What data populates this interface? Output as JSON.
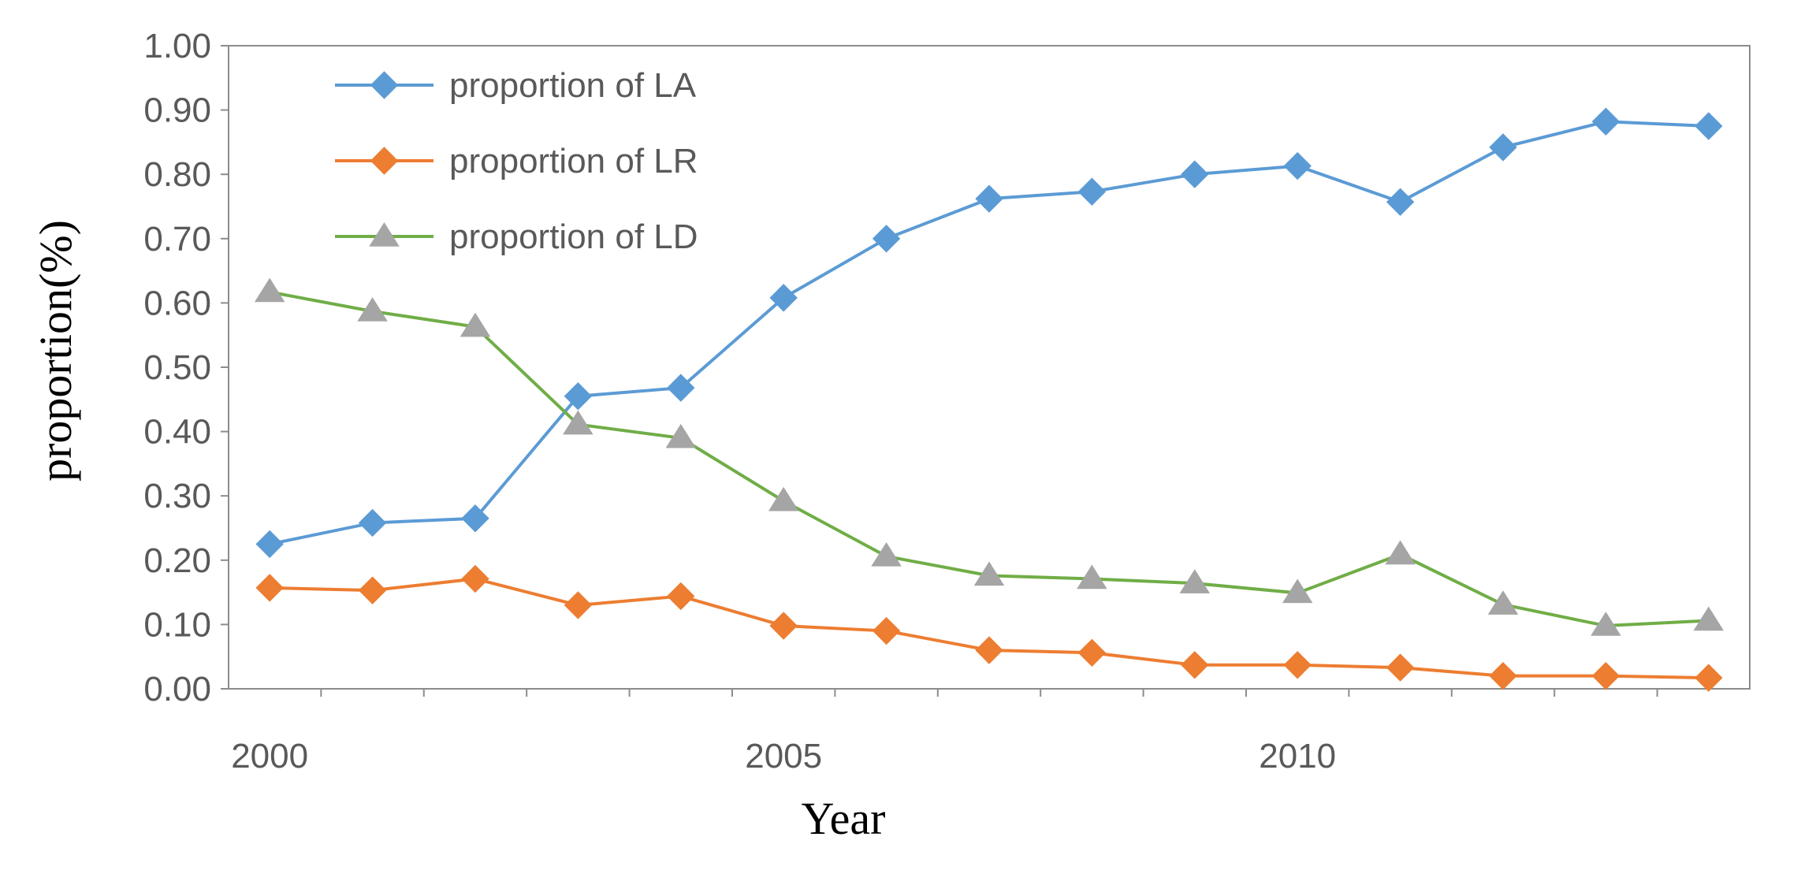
{
  "chart_data": {
    "type": "line",
    "title": "",
    "xlabel": "Year",
    "ylabel": "proportion(%)",
    "x": [
      2000,
      2001,
      2002,
      2003,
      2004,
      2005,
      2006,
      2007,
      2008,
      2009,
      2010,
      2011,
      2012,
      2013,
      2014
    ],
    "xlim": [
      1999.6,
      2014.4
    ],
    "x_ticks": [
      2000,
      2005,
      2010
    ],
    "x_tick_labels": [
      "2000",
      "2005",
      "2010"
    ],
    "ylim": [
      0,
      1
    ],
    "y_ticks": [
      0,
      0.1,
      0.2,
      0.3,
      0.4,
      0.5,
      0.6,
      0.7,
      0.8,
      0.9,
      1.0
    ],
    "y_tick_labels": [
      "0.00",
      "0.10",
      "0.20",
      "0.30",
      "0.40",
      "0.50",
      "0.60",
      "0.70",
      "0.80",
      "0.90",
      "1.00"
    ],
    "grid": false,
    "legend_position": "top-left",
    "series": [
      {
        "name": "proportion of LA",
        "color": "#5B9BD5",
        "marker": "diamond",
        "values": [
          0.225,
          0.258,
          0.265,
          0.455,
          0.468,
          0.608,
          0.7,
          0.762,
          0.773,
          0.8,
          0.813,
          0.757,
          0.842,
          0.882,
          0.875
        ]
      },
      {
        "name": "proportion of LR",
        "color": "#ED7D31",
        "marker": "diamond",
        "values": [
          0.157,
          0.153,
          0.171,
          0.13,
          0.144,
          0.098,
          0.09,
          0.06,
          0.056,
          0.037,
          0.037,
          0.033,
          0.02,
          0.02,
          0.017
        ]
      },
      {
        "name": "proportion of LD",
        "color": "#70AD47",
        "marker": "triangle",
        "marker_color": "#A5A5A5",
        "values": [
          0.617,
          0.587,
          0.563,
          0.411,
          0.39,
          0.292,
          0.206,
          0.176,
          0.171,
          0.164,
          0.149,
          0.209,
          0.131,
          0.098,
          0.106
        ]
      }
    ]
  }
}
